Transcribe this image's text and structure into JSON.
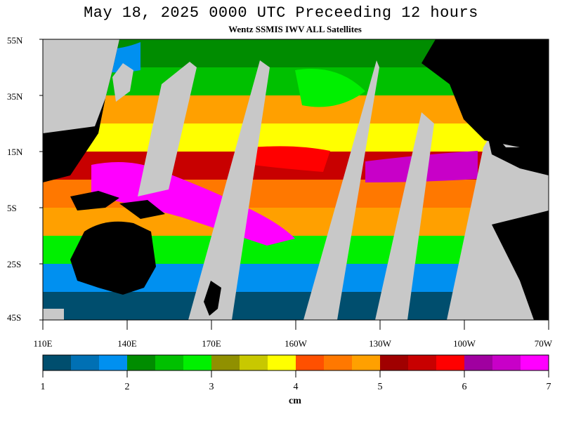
{
  "title": "May 18, 2025  0000 UTC Preceeding 12 hours",
  "subtitle": "Wentz SSMIS IWV ALL Satellites",
  "lat_ticks": [
    "55N",
    "35N",
    "15N",
    "5S",
    "25S",
    "45S"
  ],
  "lon_ticks": [
    "110E",
    "140E",
    "170E",
    "160W",
    "130W",
    "100W",
    "70W"
  ],
  "colorbar": {
    "labels": [
      "1",
      "2",
      "3",
      "4",
      "5",
      "6",
      "7"
    ],
    "unit": "cm",
    "colors": [
      "#004e6e",
      "#0070b4",
      "#0090f0",
      "#008c00",
      "#00c000",
      "#00f000",
      "#909000",
      "#c8c800",
      "#ffff00",
      "#ff5000",
      "#ff7800",
      "#ffa000",
      "#a00000",
      "#c80000",
      "#ff0000",
      "#a000a0",
      "#c800c8",
      "#ff00ff"
    ]
  },
  "colors": {
    "land": "#000000",
    "no_data": "#c8c8c8"
  }
}
